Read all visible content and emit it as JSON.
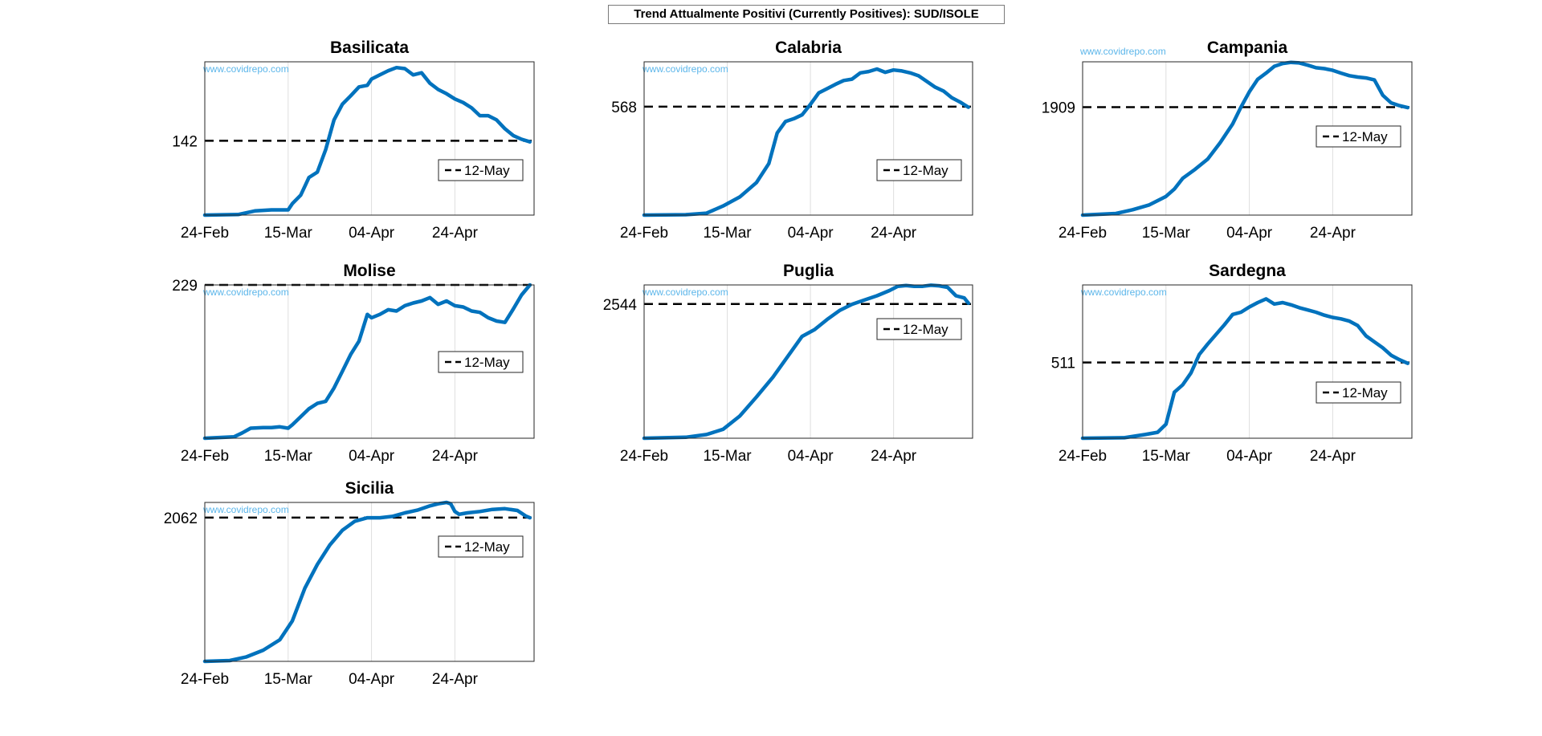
{
  "figure": {
    "title": "Trend Attualmente Positivi (Currently Positives): SUD/ISOLE",
    "watermark": "www.covidrepo.com",
    "legend_label": "12-May",
    "line_color": "#0072bd",
    "reference_color": "#000000"
  },
  "chart_data": [
    {
      "type": "line",
      "title": "Basilicata",
      "x_ticks": [
        "24-Feb",
        "15-Mar",
        "04-Apr",
        "24-Apr"
      ],
      "y_ticks": [
        142
      ],
      "x_range": [
        0,
        79
      ],
      "ylim": [
        0,
        293
      ],
      "reference": {
        "label": "12-May",
        "value": 142,
        "style": "dashed"
      },
      "grid": "vertical",
      "legend_placement": "lower-right",
      "x": [
        0,
        8,
        12,
        16,
        20,
        21,
        23,
        25,
        27,
        29,
        31,
        33,
        35,
        37,
        39,
        40,
        42,
        44,
        46,
        48,
        50,
        52,
        54,
        56,
        58,
        60,
        62,
        64,
        66,
        68,
        70,
        72,
        74,
        76,
        78
      ],
      "values": [
        0,
        1,
        8,
        10,
        10,
        22,
        38,
        72,
        82,
        125,
        182,
        212,
        228,
        245,
        248,
        260,
        268,
        276,
        282,
        280,
        268,
        272,
        252,
        240,
        232,
        222,
        215,
        205,
        190,
        190,
        182,
        165,
        152,
        145,
        140
      ]
    },
    {
      "type": "line",
      "title": "Calabria",
      "x_ticks": [
        "24-Feb",
        "15-Mar",
        "04-Apr",
        "24-Apr"
      ],
      "y_ticks": [
        568
      ],
      "x_range": [
        0,
        79
      ],
      "ylim": [
        0,
        803
      ],
      "reference": {
        "label": "12-May",
        "value": 568,
        "style": "dashed"
      },
      "grid": "vertical",
      "legend_placement": "lower-right",
      "x": [
        0,
        10,
        15,
        19,
        23,
        27,
        30,
        32,
        34,
        36,
        38,
        40,
        42,
        44,
        46,
        48,
        50,
        52,
        54,
        56,
        58,
        60,
        62,
        64,
        66,
        68,
        70,
        72,
        74,
        76,
        78
      ],
      "values": [
        0,
        2,
        10,
        48,
        95,
        170,
        270,
        430,
        490,
        505,
        525,
        580,
        640,
        662,
        685,
        705,
        712,
        745,
        752,
        765,
        748,
        760,
        755,
        745,
        730,
        700,
        670,
        650,
        615,
        592,
        565
      ]
    },
    {
      "type": "line",
      "title": "Campania",
      "x_ticks": [
        "24-Feb",
        "15-Mar",
        "04-Apr",
        "24-Apr"
      ],
      "y_ticks": [
        1909
      ],
      "x_range": [
        0,
        79
      ],
      "ylim": [
        0,
        2710
      ],
      "reference": {
        "label": "12-May",
        "value": 1909,
        "style": "dashed"
      },
      "grid": "vertical",
      "legend_placement": "lower-right",
      "x": [
        0,
        8,
        12,
        16,
        20,
        22,
        24,
        27,
        30,
        33,
        36,
        38,
        40,
        42,
        44,
        46,
        48,
        50,
        52,
        54,
        56,
        58,
        60,
        62,
        64,
        66,
        68,
        70,
        72,
        74,
        76,
        78
      ],
      "values": [
        0,
        28,
        95,
        180,
        330,
        460,
        650,
        810,
        990,
        1280,
        1610,
        1910,
        2180,
        2400,
        2510,
        2630,
        2680,
        2700,
        2690,
        2650,
        2605,
        2590,
        2560,
        2510,
        2465,
        2440,
        2425,
        2390,
        2120,
        1985,
        1935,
        1900
      ]
    },
    {
      "type": "line",
      "title": "Molise",
      "x_ticks": [
        "24-Feb",
        "15-Mar",
        "04-Apr",
        "24-Apr"
      ],
      "y_ticks": [
        229
      ],
      "x_range": [
        0,
        79
      ],
      "ylim": [
        0,
        229
      ],
      "reference": {
        "label": "12-May",
        "value": 229,
        "style": "dashed"
      },
      "grid": "vertical",
      "legend_placement": "lower-right",
      "x": [
        0,
        7,
        9,
        11,
        14,
        16,
        18,
        20,
        21,
        23,
        25,
        27,
        29,
        31,
        33,
        35,
        37,
        39,
        40,
        42,
        44,
        46,
        48,
        50,
        52,
        54,
        56,
        58,
        60,
        62,
        64,
        66,
        68,
        70,
        72,
        74,
        76,
        78
      ],
      "values": [
        0,
        2,
        8,
        15,
        16,
        16,
        17,
        15,
        20,
        32,
        44,
        52,
        55,
        75,
        100,
        125,
        145,
        185,
        180,
        185,
        192,
        190,
        198,
        202,
        205,
        210,
        200,
        205,
        198,
        196,
        190,
        188,
        180,
        175,
        173,
        193,
        214,
        229
      ]
    },
    {
      "type": "line",
      "title": "Puglia",
      "x_ticks": [
        "24-Feb",
        "15-Mar",
        "04-Apr",
        "24-Apr"
      ],
      "y_ticks": [
        2544
      ],
      "x_range": [
        0,
        79
      ],
      "ylim": [
        0,
        2906
      ],
      "reference": {
        "label": "12-May",
        "value": 2544,
        "style": "dashed"
      },
      "grid": "vertical",
      "legend_placement": "upper-right",
      "x": [
        0,
        10,
        15,
        19,
        23,
        27,
        31,
        35,
        38,
        41,
        44,
        47,
        50,
        53,
        56,
        59,
        61,
        63,
        65,
        67,
        69,
        71,
        73,
        75,
        77,
        78
      ],
      "values": [
        0,
        18,
        70,
        170,
        420,
        780,
        1160,
        1600,
        1930,
        2060,
        2250,
        2420,
        2540,
        2620,
        2700,
        2800,
        2880,
        2895,
        2880,
        2880,
        2900,
        2890,
        2860,
        2700,
        2660,
        2560
      ]
    },
    {
      "type": "line",
      "title": "Sardegna",
      "x_ticks": [
        "24-Feb",
        "15-Mar",
        "04-Apr",
        "24-Apr"
      ],
      "y_ticks": [
        511
      ],
      "x_range": [
        0,
        79
      ],
      "ylim": [
        0,
        1034
      ],
      "reference": {
        "label": "12-May",
        "value": 511,
        "style": "dashed"
      },
      "grid": "vertical",
      "legend_placement": "lower-right",
      "x": [
        0,
        10,
        15,
        18,
        20,
        22,
        24,
        26,
        28,
        30,
        32,
        34,
        36,
        38,
        40,
        42,
        44,
        46,
        48,
        50,
        52,
        54,
        56,
        58,
        60,
        62,
        64,
        66,
        68,
        70,
        72,
        74,
        76,
        78
      ],
      "values": [
        0,
        3,
        25,
        40,
        95,
        310,
        360,
        440,
        565,
        635,
        700,
        765,
        835,
        850,
        885,
        915,
        940,
        905,
        915,
        900,
        880,
        865,
        850,
        830,
        815,
        805,
        790,
        760,
        690,
        650,
        610,
        560,
        530,
        505
      ]
    },
    {
      "type": "line",
      "title": "Sicilia",
      "x_ticks": [
        "24-Feb",
        "15-Mar",
        "04-Apr",
        "24-Apr"
      ],
      "y_ticks": [
        2062
      ],
      "x_range": [
        0,
        79
      ],
      "ylim": [
        0,
        2280
      ],
      "reference": {
        "label": "12-May",
        "value": 2062,
        "style": "dashed"
      },
      "grid": "vertical",
      "legend_placement": "upper-right",
      "x": [
        0,
        6,
        10,
        14,
        18,
        21,
        24,
        27,
        30,
        33,
        36,
        39,
        42,
        45,
        48,
        51,
        54,
        56,
        58,
        59,
        60,
        61,
        62,
        63,
        66,
        69,
        72,
        75,
        77,
        78
      ],
      "values": [
        0,
        12,
        65,
        160,
        310,
        580,
        1050,
        1390,
        1670,
        1880,
        2010,
        2060,
        2060,
        2080,
        2130,
        2170,
        2230,
        2260,
        2280,
        2260,
        2150,
        2110,
        2120,
        2130,
        2150,
        2180,
        2190,
        2165,
        2085,
        2060
      ]
    }
  ]
}
